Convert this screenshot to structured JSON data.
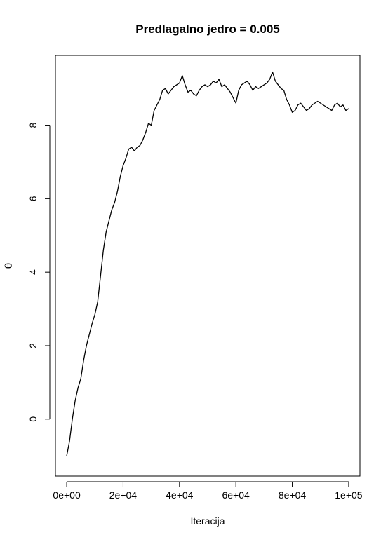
{
  "chart_data": {
    "type": "line",
    "title": "Predlagalno jedro = 0.005",
    "xlabel": "Iteracija",
    "ylabel": "θ",
    "xlim": [
      -4000,
      104000
    ],
    "ylim": [
      -1.55,
      9.9
    ],
    "x_ticks": [
      0,
      20000,
      40000,
      60000,
      80000,
      100000
    ],
    "x_tick_labels": [
      "0e+00",
      "2e+04",
      "4e+04",
      "6e+04",
      "8e+04",
      "1e+05"
    ],
    "y_ticks": [
      0,
      2,
      4,
      6,
      8
    ],
    "y_tick_labels": [
      "0",
      "2",
      "4",
      "6",
      "8"
    ],
    "grid": false,
    "line_color": "#000000",
    "series": [
      {
        "name": "",
        "x": [
          0,
          1000,
          2000,
          3000,
          4000,
          5000,
          6000,
          7000,
          8000,
          9000,
          10000,
          11000,
          12000,
          13000,
          14000,
          15000,
          16000,
          17000,
          18000,
          19000,
          20000,
          21000,
          22000,
          23000,
          24000,
          25000,
          26000,
          27000,
          28000,
          29000,
          30000,
          31000,
          32000,
          33000,
          34000,
          35000,
          36000,
          37000,
          38000,
          39000,
          40000,
          41000,
          42000,
          43000,
          44000,
          45000,
          46000,
          47000,
          48000,
          49000,
          50000,
          51000,
          52000,
          53000,
          54000,
          55000,
          56000,
          57000,
          58000,
          59000,
          60000,
          61000,
          62000,
          63000,
          64000,
          65000,
          66000,
          67000,
          68000,
          69000,
          70000,
          71000,
          72000,
          73000,
          74000,
          75000,
          76000,
          77000,
          78000,
          79000,
          80000,
          81000,
          82000,
          83000,
          84000,
          85000,
          86000,
          87000,
          88000,
          89000,
          90000,
          91000,
          92000,
          93000,
          94000,
          95000,
          96000,
          97000,
          98000,
          99000,
          100000
        ],
        "values": [
          -1.0,
          -0.6,
          0.0,
          0.5,
          0.85,
          1.1,
          1.6,
          2.0,
          2.3,
          2.6,
          2.85,
          3.2,
          3.9,
          4.6,
          5.1,
          5.4,
          5.7,
          5.9,
          6.2,
          6.6,
          6.9,
          7.1,
          7.35,
          7.4,
          7.3,
          7.4,
          7.45,
          7.6,
          7.8,
          8.05,
          8.0,
          8.4,
          8.55,
          8.7,
          8.95,
          9.0,
          8.85,
          8.95,
          9.05,
          9.1,
          9.15,
          9.35,
          9.1,
          8.9,
          8.95,
          8.85,
          8.8,
          8.95,
          9.05,
          9.1,
          9.05,
          9.1,
          9.2,
          9.15,
          9.25,
          9.05,
          9.1,
          9.0,
          8.9,
          8.75,
          8.6,
          8.95,
          9.1,
          9.15,
          9.2,
          9.1,
          8.95,
          9.05,
          9.0,
          9.05,
          9.1,
          9.15,
          9.25,
          9.45,
          9.2,
          9.1,
          9.0,
          8.95,
          8.7,
          8.55,
          8.35,
          8.4,
          8.55,
          8.6,
          8.5,
          8.4,
          8.45,
          8.55,
          8.6,
          8.65,
          8.6,
          8.55,
          8.5,
          8.45,
          8.4,
          8.55,
          8.6,
          8.5,
          8.55,
          8.4,
          8.45
        ]
      }
    ]
  }
}
